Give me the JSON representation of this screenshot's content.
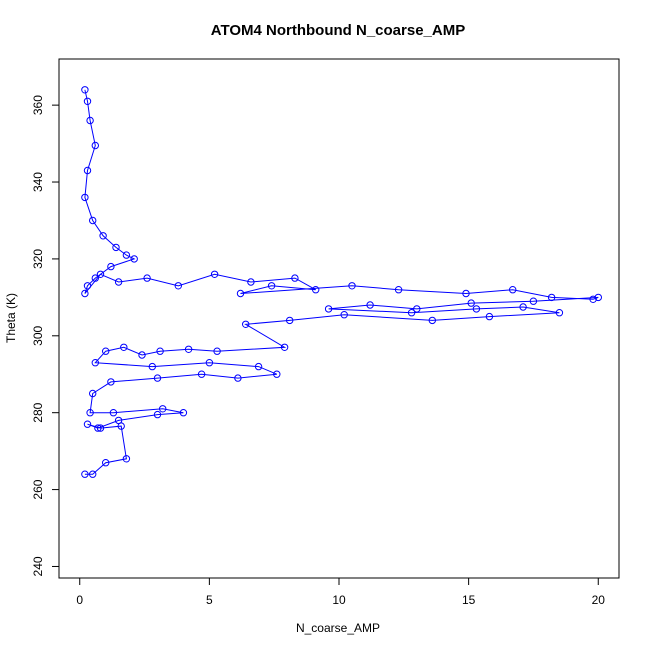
{
  "chart_data": {
    "type": "scatter",
    "title": "ATOM4 Northbound N_coarse_AMP",
    "xlabel": "N_coarse_AMP",
    "ylabel": "Theta (K)",
    "xlim": [
      -0.8,
      20.8
    ],
    "ylim": [
      237,
      372
    ],
    "xticks": [
      "0",
      "5",
      "10",
      "15",
      "20"
    ],
    "yticks": [
      "240",
      "260",
      "280",
      "300",
      "320",
      "340",
      "360"
    ],
    "grid": false,
    "legend": "none",
    "series": [
      {
        "style": "points and connecting lines, open circles",
        "color": "#0000ff",
        "x": [
          0.2,
          0.3,
          0.4,
          0.6,
          0.3,
          0.2,
          0.5,
          0.9,
          1.4,
          1.8,
          2.1,
          1.2,
          0.6,
          0.3,
          0.2,
          0.8,
          1.5,
          2.6,
          3.8,
          5.2,
          6.6,
          8.3,
          9.1,
          7.4,
          6.2,
          10.5,
          12.3,
          14.9,
          16.7,
          18.2,
          19.8,
          20.0,
          17.5,
          15.1,
          13.0,
          11.2,
          9.6,
          12.8,
          15.3,
          17.1,
          18.5,
          15.8,
          13.6,
          10.2,
          8.1,
          6.4,
          7.9,
          5.3,
          4.2,
          3.1,
          2.4,
          1.7,
          1.0,
          0.6,
          2.8,
          5.0,
          6.9,
          7.6,
          6.1,
          4.7,
          3.0,
          1.2,
          0.5,
          0.4,
          1.3,
          3.2,
          4.0,
          3.0,
          1.5,
          0.7,
          0.3,
          0.8,
          1.6,
          1.8,
          1.0,
          0.5,
          0.2
        ],
        "y": [
          364,
          361,
          356,
          349.5,
          343,
          336,
          330,
          326,
          323,
          321,
          320,
          318,
          315,
          313,
          311,
          316,
          314,
          315,
          313,
          316,
          314,
          315,
          312,
          313,
          311,
          313,
          312,
          311,
          312,
          310,
          309.5,
          310,
          309,
          308.5,
          307,
          308,
          307,
          306,
          307,
          307.5,
          306,
          305,
          304,
          305.5,
          304,
          303,
          297,
          296,
          296.5,
          296,
          295,
          297,
          296,
          293,
          292,
          293,
          292,
          290,
          289,
          290,
          289,
          288,
          285,
          280,
          280,
          281,
          280,
          279.5,
          278,
          276,
          277,
          276,
          276.5,
          268,
          267,
          264,
          264
        ]
      }
    ]
  }
}
